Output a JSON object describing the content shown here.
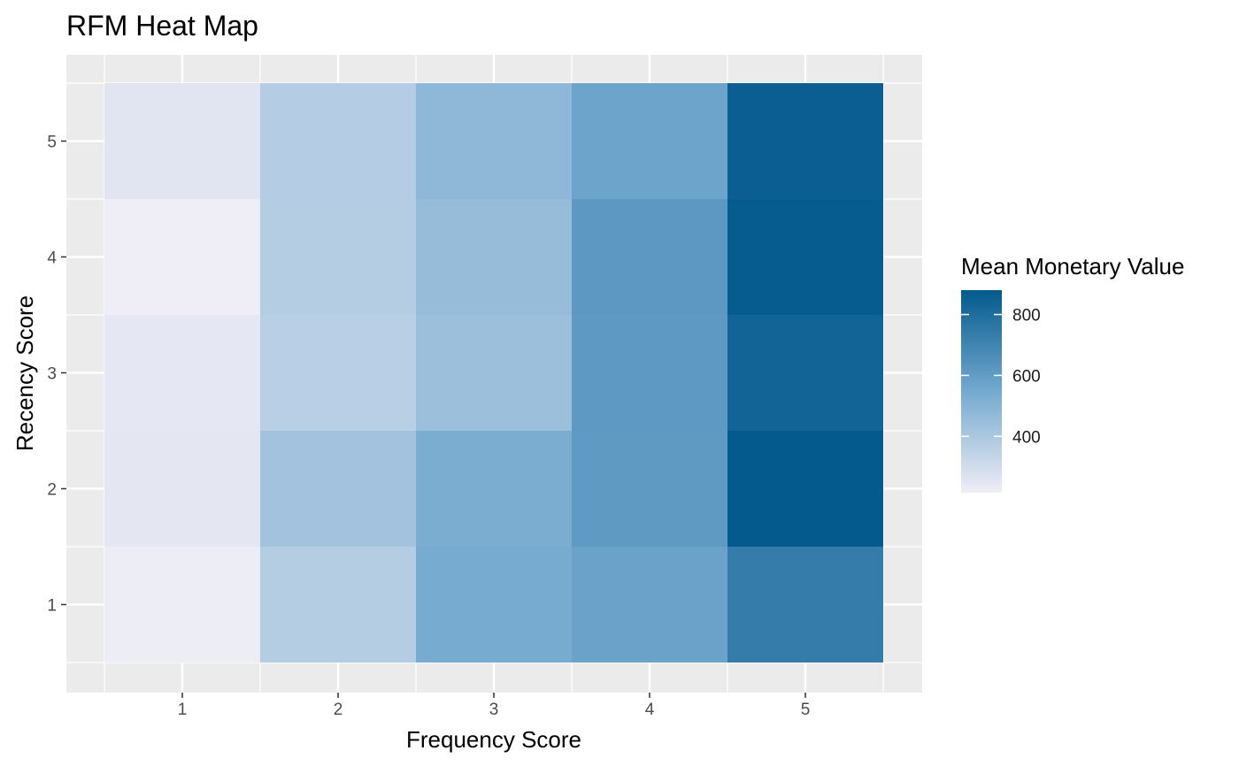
{
  "chart_data": {
    "type": "heatmap",
    "title": "RFM Heat Map",
    "xlabel": "Frequency Score",
    "ylabel": "Recency Score",
    "x_categories": [
      "1",
      "2",
      "3",
      "4",
      "5"
    ],
    "y_categories": [
      "1",
      "2",
      "3",
      "4",
      "5"
    ],
    "legend_title": "Mean Monetary Value",
    "legend_position": "right",
    "color_range": [
      215,
      880
    ],
    "color_low": "#f0eef6",
    "color_high": "#045a8d",
    "legend_ticks": [
      {
        "value": 400,
        "label": "400"
      },
      {
        "value": 600,
        "label": "600"
      },
      {
        "value": 800,
        "label": "800"
      }
    ],
    "grid": true,
    "background": "#ebebeb",
    "values": [
      {
        "x": "1",
        "y": "1",
        "value": 222
      },
      {
        "x": "1",
        "y": "2",
        "value": 248
      },
      {
        "x": "1",
        "y": "3",
        "value": 245
      },
      {
        "x": "1",
        "y": "4",
        "value": 218
      },
      {
        "x": "1",
        "y": "5",
        "value": 258
      },
      {
        "x": "2",
        "y": "1",
        "value": 375
      },
      {
        "x": "2",
        "y": "2",
        "value": 425
      },
      {
        "x": "2",
        "y": "3",
        "value": 362
      },
      {
        "x": "2",
        "y": "4",
        "value": 375
      },
      {
        "x": "2",
        "y": "5",
        "value": 372
      },
      {
        "x": "3",
        "y": "1",
        "value": 540
      },
      {
        "x": "3",
        "y": "2",
        "value": 528
      },
      {
        "x": "3",
        "y": "3",
        "value": 440
      },
      {
        "x": "3",
        "y": "4",
        "value": 455
      },
      {
        "x": "3",
        "y": "5",
        "value": 475
      },
      {
        "x": "4",
        "y": "1",
        "value": 575
      },
      {
        "x": "4",
        "y": "2",
        "value": 610
      },
      {
        "x": "4",
        "y": "3",
        "value": 615
      },
      {
        "x": "4",
        "y": "4",
        "value": 620
      },
      {
        "x": "4",
        "y": "5",
        "value": 570
      },
      {
        "x": "5",
        "y": "1",
        "value": 735
      },
      {
        "x": "5",
        "y": "2",
        "value": 880
      },
      {
        "x": "5",
        "y": "3",
        "value": 840
      },
      {
        "x": "5",
        "y": "4",
        "value": 872
      },
      {
        "x": "5",
        "y": "5",
        "value": 862
      }
    ]
  }
}
